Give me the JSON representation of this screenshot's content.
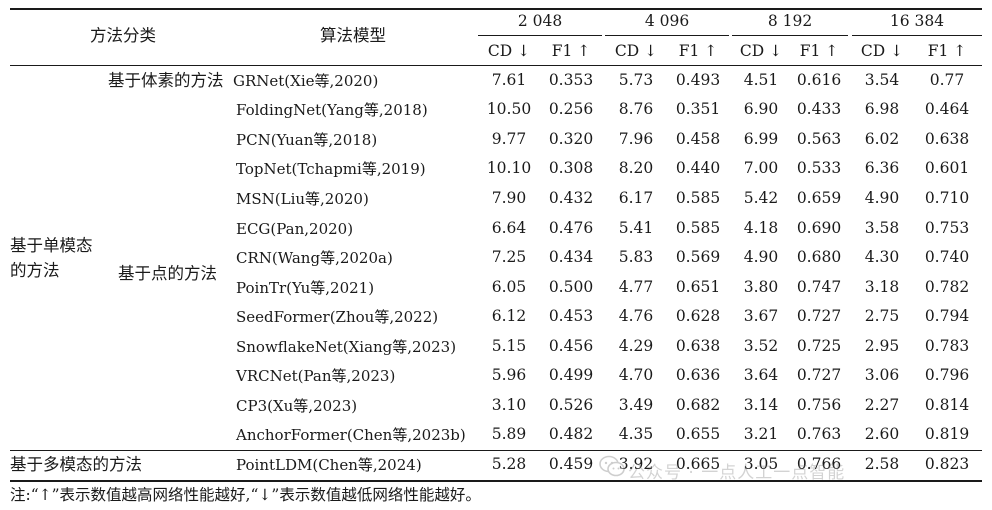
{
  "header": {
    "col_category": "方法分类",
    "col_model": "算法模型",
    "resolutions": [
      "2 048",
      "4 096",
      "8 192",
      "16 384"
    ],
    "cd_label": "CD ↓",
    "f1_label": "F1 ↑"
  },
  "groups": {
    "voxel": "基于体素的方法",
    "single_modal": "基于单模态\n的方法",
    "single_modal_line1": "基于单模态",
    "single_modal_line2": "的方法",
    "point": "基于点的方法",
    "multi_modal": "基于多模态的方法"
  },
  "rows": [
    {
      "model": "GRNet(Xie等,2020)",
      "values": [
        "7.61",
        "0.353",
        "5.73",
        "0.493",
        "4.51",
        "0.616",
        "3.54",
        "0.77"
      ]
    },
    {
      "model": "FoldingNet(Yang等,2018)",
      "values": [
        "10.50",
        "0.256",
        "8.76",
        "0.351",
        "6.90",
        "0.433",
        "6.98",
        "0.464"
      ]
    },
    {
      "model": "PCN(Yuan等,2018)",
      "values": [
        "9.77",
        "0.320",
        "7.96",
        "0.458",
        "6.99",
        "0.563",
        "6.02",
        "0.638"
      ]
    },
    {
      "model": "TopNet(Tchapmi等,2019)",
      "values": [
        "10.10",
        "0.308",
        "8.20",
        "0.440",
        "7.00",
        "0.533",
        "6.36",
        "0.601"
      ]
    },
    {
      "model": "MSN(Liu等,2020)",
      "values": [
        "7.90",
        "0.432",
        "6.17",
        "0.585",
        "5.42",
        "0.659",
        "4.90",
        "0.710"
      ]
    },
    {
      "model": "ECG(Pan,2020)",
      "values": [
        "6.64",
        "0.476",
        "5.41",
        "0.585",
        "4.18",
        "0.690",
        "3.58",
        "0.753"
      ]
    },
    {
      "model": "CRN(Wang等,2020a)",
      "values": [
        "7.25",
        "0.434",
        "5.83",
        "0.569",
        "4.90",
        "0.680",
        "4.30",
        "0.740"
      ]
    },
    {
      "model": "PoinTr(Yu等,2021)",
      "values": [
        "6.05",
        "0.500",
        "4.77",
        "0.651",
        "3.80",
        "0.747",
        "3.18",
        "0.782"
      ]
    },
    {
      "model": "SeedFormer(Zhou等,2022)",
      "values": [
        "6.12",
        "0.453",
        "4.76",
        "0.628",
        "3.67",
        "0.727",
        "2.75",
        "0.794"
      ]
    },
    {
      "model": "SnowflakeNet(Xiang等,2023)",
      "values": [
        "5.15",
        "0.456",
        "4.29",
        "0.638",
        "3.52",
        "0.725",
        "2.95",
        "0.783"
      ]
    },
    {
      "model": "VRCNet(Pan等,2023)",
      "values": [
        "5.96",
        "0.499",
        "4.70",
        "0.636",
        "3.64",
        "0.727",
        "3.06",
        "0.796"
      ]
    },
    {
      "model": "CP3(Xu等,2023)",
      "values": [
        "3.10",
        "0.526",
        "3.49",
        "0.682",
        "3.14",
        "0.756",
        "2.27",
        "0.814"
      ]
    },
    {
      "model": "AnchorFormer(Chen等,2023b)",
      "values": [
        "5.89",
        "0.482",
        "4.35",
        "0.655",
        "3.21",
        "0.763",
        "2.60",
        "0.819"
      ]
    },
    {
      "model": "PointLDM(Chen等,2024)",
      "values": [
        "5.28",
        "0.459",
        "3.92",
        "0.665",
        "3.05",
        "0.766",
        "2.58",
        "0.823"
      ]
    }
  ],
  "note": "注:“↑”表示数值越高网络性能越好,“↓”表示数值越低网络性能越好。",
  "watermark": "公众号 · 一点人工一点智能",
  "watermark_icon": "wechat-icon"
}
